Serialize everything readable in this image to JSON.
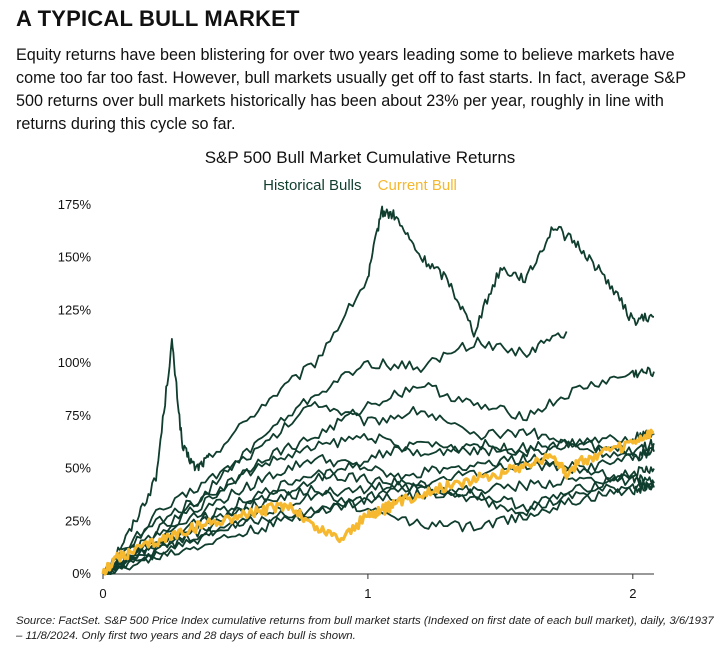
{
  "headline": "A TYPICAL BULL MARKET",
  "intro": "Equity returns have been blistering for over two years leading some to believe markets have come too far too fast. However, bull markets usually get off to fast starts. In fact, average S&P 500 returns over bull markets historically has been about 23% per year, roughly in line with returns during this cycle so far.",
  "source": "Source: FactSet. S&P 500 Price Index cumulative returns from bull market starts (Indexed on first date of each bull market), daily, 3/6/1937 – 11/8/2024. Only first two years and 28 days of each bull is shown.",
  "colors": {
    "historical": "#0f3d2e",
    "current": "#f5b82e"
  },
  "chart_data": {
    "type": "line",
    "title": "S&P 500 Bull Market Cumulative Returns",
    "xlabel": "",
    "ylabel": "",
    "xlim": [
      0,
      2.08
    ],
    "ylim": [
      0,
      175
    ],
    "x_ticks": [
      0,
      1,
      2
    ],
    "x_tick_labels": [
      "0",
      "1",
      "2"
    ],
    "y_ticks": [
      0,
      25,
      50,
      75,
      100,
      125,
      150,
      175
    ],
    "y_tick_labels": [
      "0%",
      "25%",
      "50%",
      "75%",
      "100%",
      "125%",
      "150%",
      "175%"
    ],
    "grid": false,
    "legend": {
      "placement": "top-center",
      "entries": [
        {
          "name": "Historical Bulls"
        },
        {
          "name": "Current Bull"
        }
      ]
    },
    "series": [
      {
        "name": "Historical Bulls",
        "group": "historical",
        "x": [
          0,
          0.1,
          0.2,
          0.26,
          0.3,
          0.35,
          0.4,
          0.6,
          0.8,
          1.0,
          1.05,
          1.1,
          1.2,
          1.3,
          1.4,
          1.5,
          1.6,
          1.7,
          1.8,
          1.9,
          2.0,
          2.08
        ],
        "y": [
          0,
          20,
          45,
          110,
          60,
          50,
          55,
          80,
          100,
          140,
          172,
          170,
          150,
          140,
          115,
          145,
          140,
          165,
          155,
          140,
          120,
          122
        ]
      },
      {
        "name": "Historical Bulls",
        "group": "historical",
        "x": [
          0,
          0.2,
          0.4,
          0.6,
          0.8,
          1.0,
          1.2,
          1.4,
          1.6,
          1.75
        ],
        "y": [
          0,
          15,
          40,
          65,
          85,
          100,
          98,
          110,
          105,
          115
        ]
      },
      {
        "name": "Historical Bulls",
        "group": "historical",
        "x": [
          0,
          0.2,
          0.4,
          0.6,
          0.8,
          1.0,
          1.2,
          1.4,
          1.6,
          1.8,
          2.0,
          2.08
        ],
        "y": [
          0,
          20,
          35,
          55,
          65,
          80,
          90,
          80,
          75,
          88,
          95,
          96
        ]
      },
      {
        "name": "Historical Bulls",
        "group": "historical",
        "x": [
          0,
          0.2,
          0.4,
          0.6,
          0.8,
          1.0,
          1.2,
          1.4,
          1.6,
          1.8,
          2.0,
          2.08
        ],
        "y": [
          0,
          28,
          45,
          60,
          82,
          72,
          78,
          65,
          68,
          60,
          55,
          60
        ]
      },
      {
        "name": "Historical Bulls",
        "group": "historical",
        "x": [
          0,
          0.2,
          0.4,
          0.6,
          0.8,
          1.0,
          1.2,
          1.4,
          1.6,
          1.8,
          2.0,
          2.08
        ],
        "y": [
          0,
          25,
          38,
          52,
          60,
          66,
          56,
          62,
          58,
          62,
          58,
          62
        ]
      },
      {
        "name": "Historical Bulls",
        "group": "historical",
        "x": [
          0,
          0.2,
          0.4,
          0.6,
          0.8,
          1.0,
          1.2,
          1.4,
          1.6,
          1.8,
          2.0,
          2.08
        ],
        "y": [
          0,
          12,
          22,
          35,
          45,
          55,
          62,
          58,
          60,
          62,
          65,
          66
        ]
      },
      {
        "name": "Historical Bulls",
        "group": "historical",
        "x": [
          0,
          0.2,
          0.4,
          0.6,
          0.8,
          1.0,
          1.2,
          1.4,
          1.6,
          1.8,
          2.0,
          2.08
        ],
        "y": [
          0,
          15,
          28,
          38,
          48,
          45,
          40,
          38,
          32,
          40,
          48,
          50
        ]
      },
      {
        "name": "Historical Bulls",
        "group": "historical",
        "x": [
          0,
          0.2,
          0.4,
          0.6,
          0.8,
          1.0,
          1.2,
          1.4,
          1.6,
          1.8,
          2.0,
          2.08
        ],
        "y": [
          0,
          18,
          32,
          45,
          55,
          50,
          42,
          35,
          30,
          38,
          42,
          43
        ]
      },
      {
        "name": "Historical Bulls",
        "group": "historical",
        "x": [
          0,
          0.2,
          0.4,
          0.6,
          0.8,
          1.0,
          1.2,
          1.4,
          1.6,
          1.8,
          2.0,
          2.08
        ],
        "y": [
          0,
          10,
          18,
          28,
          38,
          40,
          48,
          52,
          55,
          50,
          45,
          44
        ]
      },
      {
        "name": "Historical Bulls",
        "group": "historical",
        "x": [
          0,
          0.2,
          0.4,
          0.6,
          0.8,
          1.0,
          1.2,
          1.4,
          1.6,
          1.8,
          2.0,
          2.08
        ],
        "y": [
          0,
          8,
          15,
          22,
          30,
          35,
          38,
          40,
          42,
          45,
          44,
          41
        ]
      },
      {
        "name": "Historical Bulls",
        "group": "historical",
        "x": [
          0,
          0.2,
          0.4,
          0.6,
          0.8,
          1.0,
          1.2,
          1.4,
          1.6,
          1.8,
          2.0,
          2.08
        ],
        "y": [
          0,
          14,
          26,
          34,
          40,
          30,
          24,
          22,
          28,
          35,
          40,
          42
        ]
      },
      {
        "name": "Historical Bulls",
        "group": "historical",
        "x": [
          0,
          0.2,
          0.4,
          0.6,
          0.8,
          1.0,
          1.2,
          1.4,
          1.6,
          1.8,
          2.0,
          2.08
        ],
        "y": [
          0,
          12,
          20,
          26,
          30,
          36,
          42,
          48,
          52,
          50,
          55,
          58
        ]
      },
      {
        "name": "Current Bull",
        "group": "current",
        "x": [
          0,
          0.05,
          0.1,
          0.2,
          0.3,
          0.4,
          0.5,
          0.6,
          0.7,
          0.8,
          0.9,
          1.0,
          1.05,
          1.1,
          1.2,
          1.3,
          1.4,
          1.5,
          1.6,
          1.7,
          1.75,
          1.8,
          1.9,
          2.0,
          2.08
        ],
        "y": [
          0,
          8,
          10,
          15,
          20,
          24,
          27,
          30,
          33,
          22,
          17,
          28,
          30,
          33,
          38,
          42,
          45,
          48,
          52,
          56,
          48,
          53,
          58,
          62,
          67
        ]
      }
    ]
  }
}
